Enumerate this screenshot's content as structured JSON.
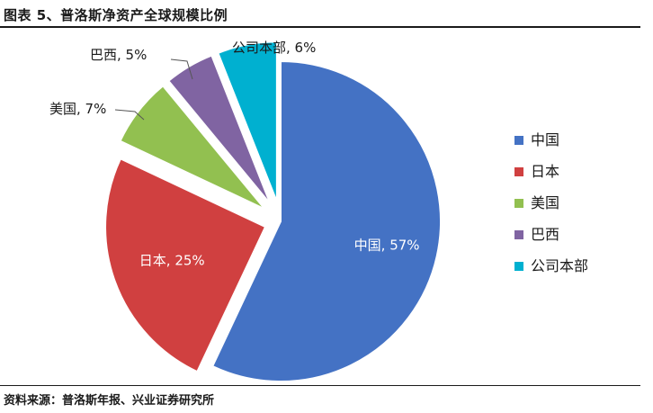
{
  "figure": {
    "title": "图表 5、普洛斯净资产全球规模比例",
    "source": "资料来源：普洛斯年报、兴业证券研究所"
  },
  "chart_data": {
    "type": "pie",
    "title": "",
    "categories": [
      "中国",
      "日本",
      "美国",
      "巴西",
      "公司本部"
    ],
    "values": [
      57,
      25,
      7,
      5,
      6
    ],
    "unit": "%",
    "colors": [
      "#4472C4",
      "#D04040",
      "#92C050",
      "#8064A2",
      "#00B0D0"
    ],
    "data_labels": [
      "中国, 57%",
      "日本, 25%",
      "美国, 7%",
      "巴西, 5%",
      "公司本部, 6%"
    ],
    "exploded": true,
    "legend": {
      "position": "right",
      "entries": [
        "中国",
        "日本",
        "美国",
        "巴西",
        "公司本部"
      ]
    }
  }
}
